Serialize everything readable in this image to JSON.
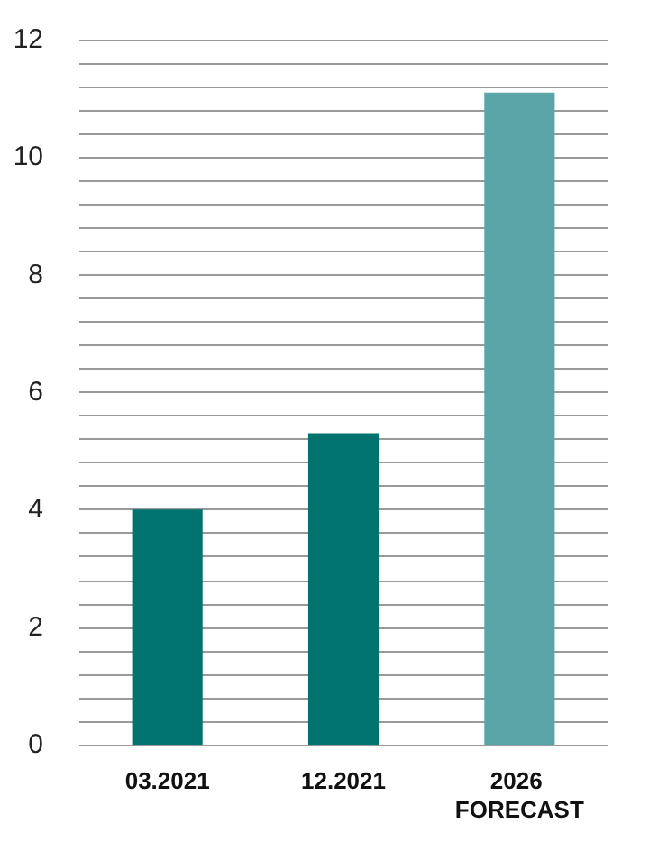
{
  "chart_data": {
    "type": "bar",
    "categories": [
      "03.2021",
      "12.2021",
      "2026 FORECAST"
    ],
    "values": [
      4.0,
      5.3,
      11.1
    ],
    "colors": [
      "#00736f",
      "#00736f",
      "#5ba5a8"
    ],
    "ylim": [
      0,
      12
    ],
    "yticks": [
      0,
      {
        "value": 0.4,
        "label": null
      },
      {
        "value": 0.8,
        "label": null
      },
      {
        "value": 1.2,
        "label": null
      },
      {
        "value": 1.6,
        "label": null
      },
      2,
      {
        "value": 2.4,
        "label": null
      },
      {
        "value": 2.8,
        "label": null
      },
      {
        "value": 3.2,
        "label": null
      },
      {
        "value": 3.6,
        "label": null
      },
      4,
      {
        "value": 4.4,
        "label": null
      },
      {
        "value": 4.8,
        "label": null
      },
      {
        "value": 5.2,
        "label": null
      },
      {
        "value": 5.6,
        "label": null
      },
      6,
      {
        "value": 6.4,
        "label": null
      },
      {
        "value": 6.8,
        "label": null
      },
      {
        "value": 7.2,
        "label": null
      },
      {
        "value": 7.6,
        "label": null
      },
      8,
      {
        "value": 8.4,
        "label": null
      },
      {
        "value": 8.8,
        "label": null
      },
      {
        "value": 9.2,
        "label": null
      },
      {
        "value": 9.6,
        "label": null
      },
      10,
      {
        "value": 10.4,
        "label": null
      },
      {
        "value": 10.8,
        "label": null
      },
      {
        "value": 11.2,
        "label": null
      },
      {
        "value": 11.6,
        "label": null
      },
      12
    ],
    "grid": "y"
  }
}
